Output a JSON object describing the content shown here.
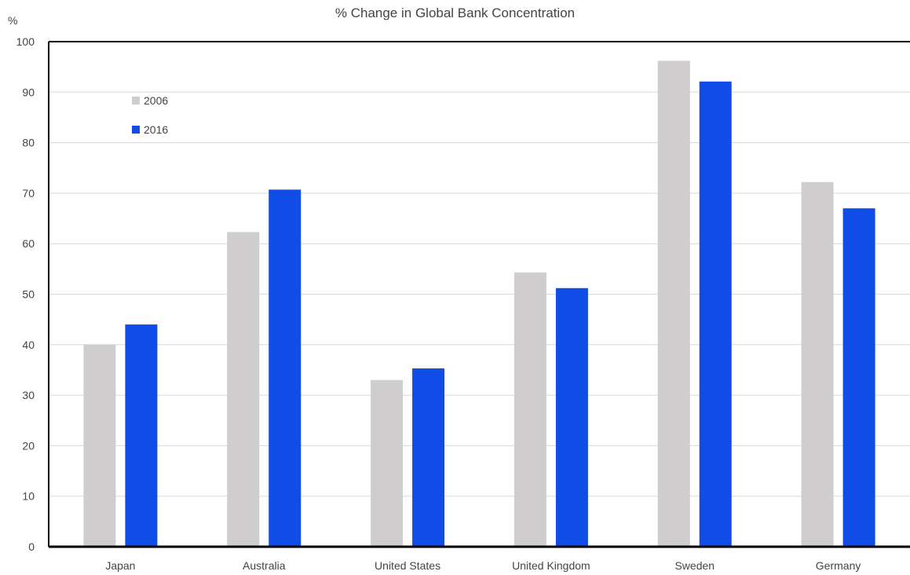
{
  "chart_data": {
    "type": "bar",
    "title": "% Change in Global Bank Concentration",
    "ylabel": "%",
    "xlabel": "",
    "ylim": [
      0,
      100
    ],
    "yticks": [
      0,
      10,
      20,
      30,
      40,
      50,
      60,
      70,
      80,
      90,
      100
    ],
    "grid": true,
    "legend_position": "top-left",
    "categories": [
      "Japan",
      "Australia",
      "United States",
      "United Kingdom",
      "Sweden",
      "Germany"
    ],
    "series": [
      {
        "name": "2006",
        "color": "#cfcdce",
        "values": [
          40,
          62.3,
          33,
          54.3,
          96.2,
          72.2
        ]
      },
      {
        "name": "2016",
        "color": "#0f4de6",
        "values": [
          44,
          70.7,
          35.3,
          51.2,
          92.1,
          67
        ]
      }
    ]
  }
}
